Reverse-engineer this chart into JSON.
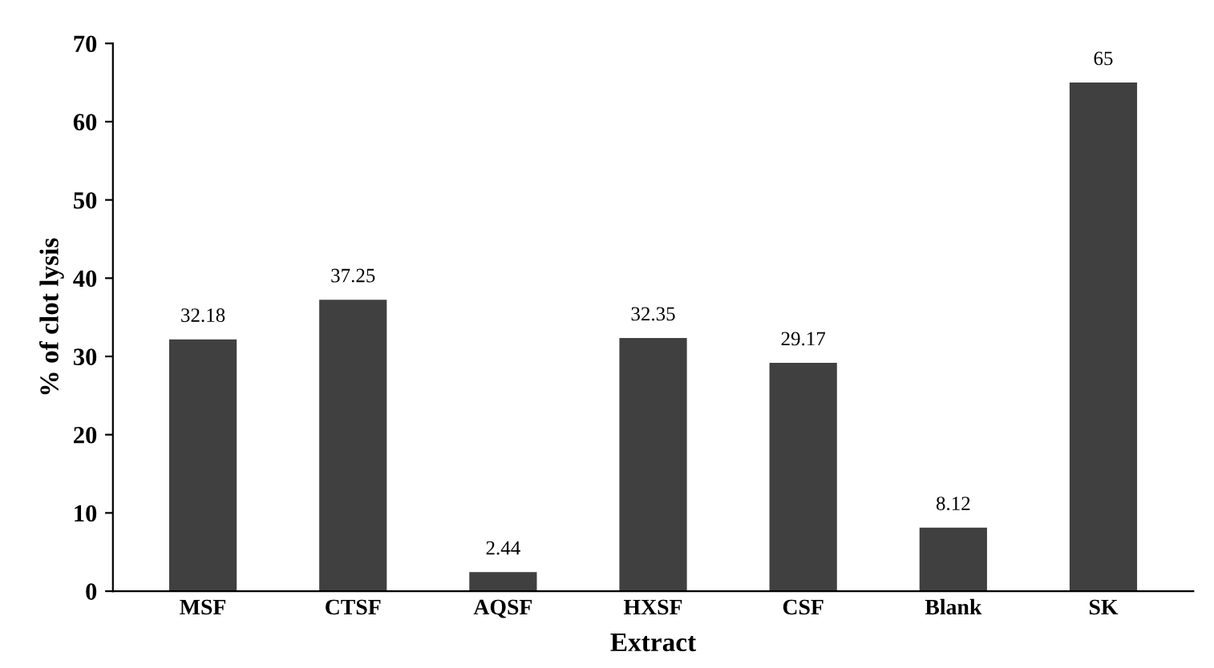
{
  "chart_data": {
    "type": "bar",
    "xlabel": "Extract",
    "ylabel": "% of clot lysis",
    "categories": [
      "MSF",
      "CTSF",
      "AQSF",
      "HXSF",
      "CSF",
      "Blank",
      "SK"
    ],
    "values": [
      32.18,
      37.25,
      2.44,
      32.35,
      29.17,
      8.12,
      65
    ],
    "color": "#404040",
    "data_labels": true,
    "ylim": [
      0,
      70
    ],
    "yticks": [
      0,
      10,
      20,
      30,
      40,
      50,
      60,
      70
    ],
    "grid": false,
    "legend": false
  }
}
